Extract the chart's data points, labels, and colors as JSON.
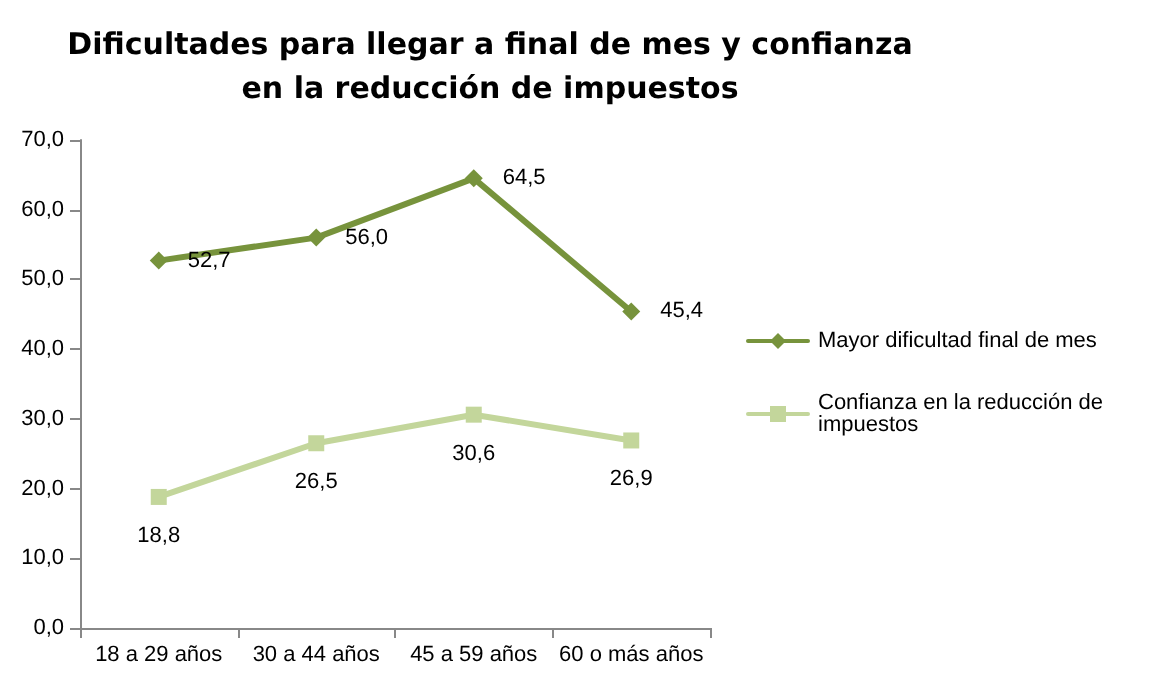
{
  "chart_data": {
    "type": "line",
    "title": "Dificultades para llegar a final de mes y confianza\nen la reducción de impuestos",
    "categories": [
      "18 a 29 años",
      "30 a 44 años",
      "45 a 59 años",
      "60 o más años"
    ],
    "series": [
      {
        "name": "Mayor dificultad final de mes",
        "color": "#77933c",
        "marker": "diamond",
        "values": [
          52.7,
          56.0,
          64.5,
          45.4
        ],
        "value_labels": [
          "52,7",
          "56,0",
          "64,5",
          "45,4"
        ]
      },
      {
        "name": "Confianza en la reducción de impuestos",
        "color": "#c3d69b",
        "marker": "square",
        "values": [
          18.8,
          26.5,
          30.6,
          26.9
        ],
        "value_labels": [
          "18,8",
          "26,5",
          "30,6",
          "26,9"
        ]
      }
    ],
    "ylim": [
      0,
      70
    ],
    "yticks": [
      {
        "value": 0,
        "label": "0,0"
      },
      {
        "value": 10,
        "label": "10,0"
      },
      {
        "value": 20,
        "label": "20,0"
      },
      {
        "value": 30,
        "label": "30,0"
      },
      {
        "value": 40,
        "label": "40,0"
      },
      {
        "value": 50,
        "label": "50,0"
      },
      {
        "value": 60,
        "label": "60,0"
      },
      {
        "value": 70,
        "label": "70,0"
      }
    ],
    "grid": false,
    "legend": "right"
  }
}
